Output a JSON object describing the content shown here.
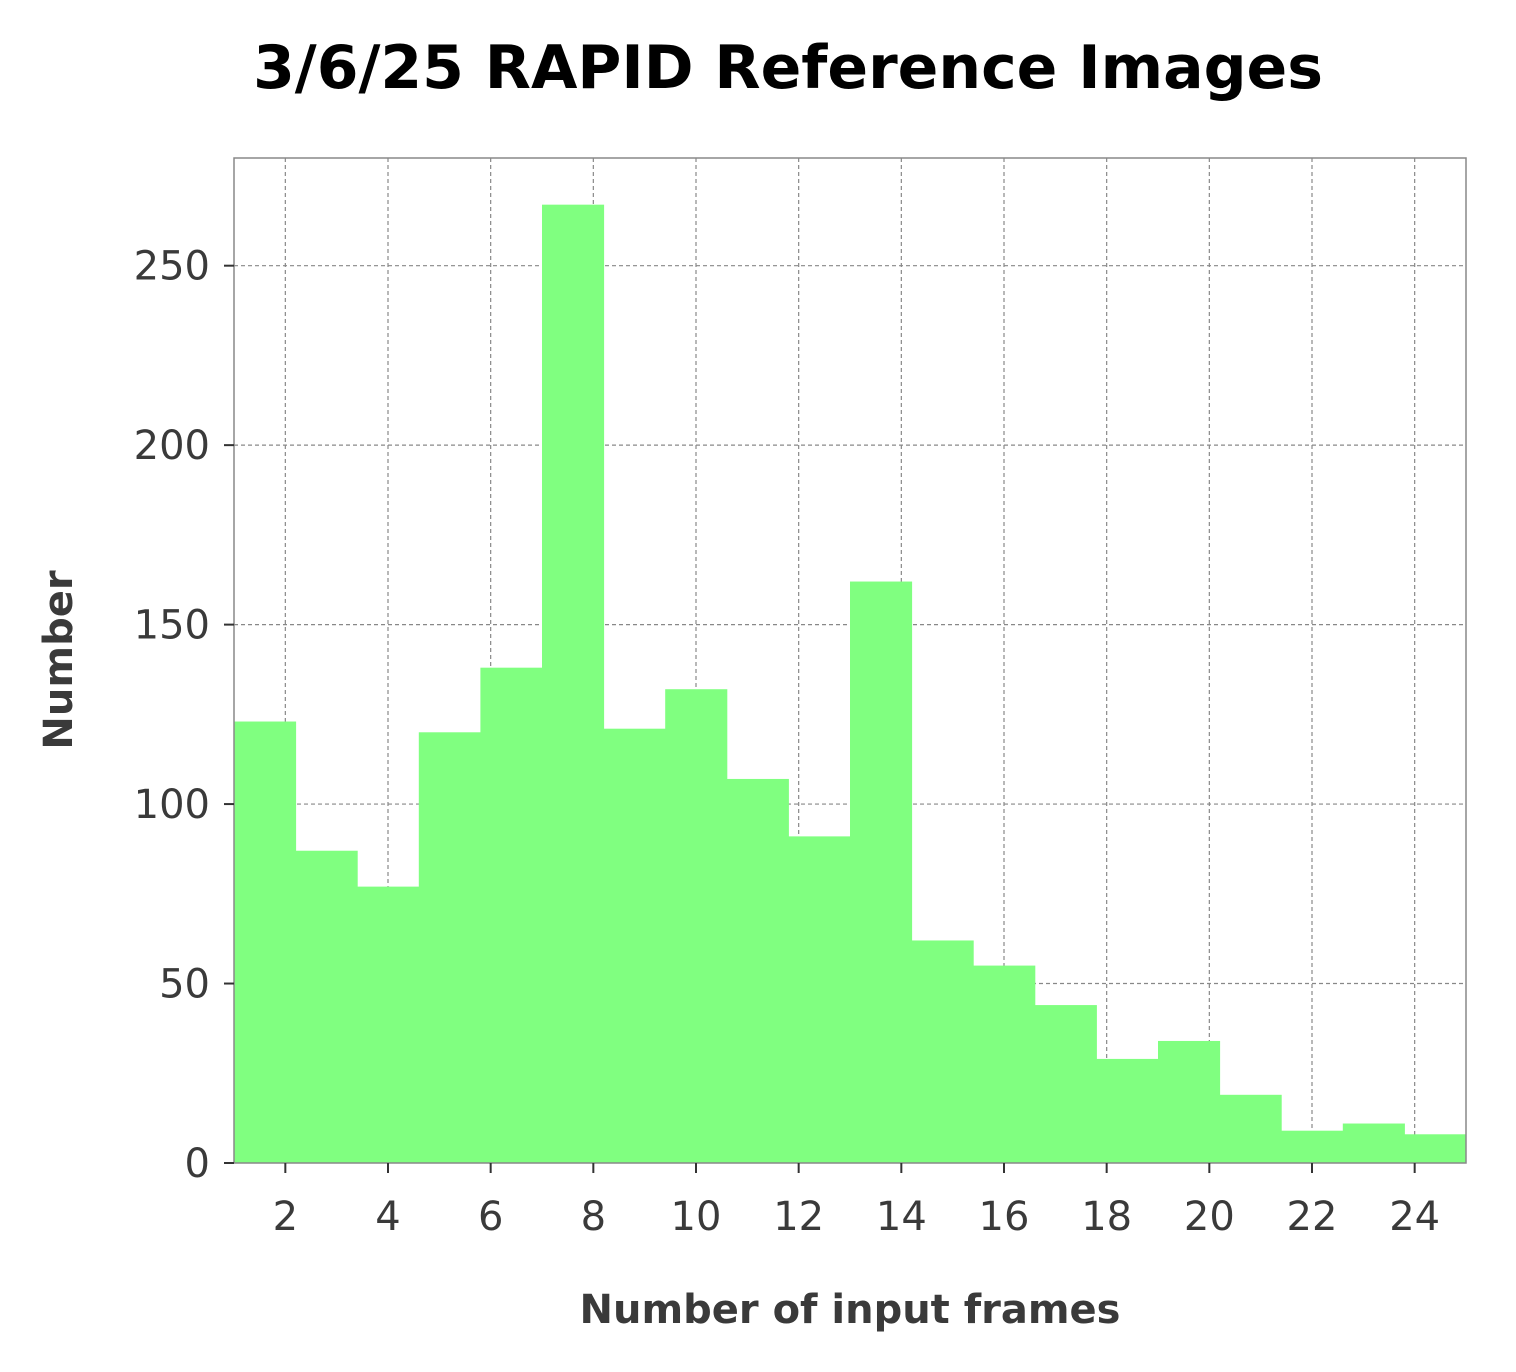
{
  "chart_data": {
    "type": "bar",
    "title": "3/6/25 RAPID Reference Images",
    "xlabel": "Number of input frames",
    "ylabel": "Number",
    "xlim": [
      1,
      25
    ],
    "ylim": [
      0,
      280
    ],
    "xticks": [
      2,
      4,
      6,
      8,
      10,
      12,
      14,
      16,
      18,
      20,
      22,
      24
    ],
    "yticks": [
      0,
      50,
      100,
      150,
      200,
      250
    ],
    "grid": true,
    "bar_color": "#80ff80",
    "bins": [
      {
        "x0": 1.0,
        "x1": 2.2,
        "value": 123
      },
      {
        "x0": 2.2,
        "x1": 3.4,
        "value": 87
      },
      {
        "x0": 3.4,
        "x1": 4.6,
        "value": 77
      },
      {
        "x0": 4.6,
        "x1": 5.8,
        "value": 120
      },
      {
        "x0": 5.8,
        "x1": 7.0,
        "value": 138
      },
      {
        "x0": 7.0,
        "x1": 8.2,
        "value": 267
      },
      {
        "x0": 8.2,
        "x1": 9.4,
        "value": 121
      },
      {
        "x0": 9.4,
        "x1": 10.6,
        "value": 132
      },
      {
        "x0": 10.6,
        "x1": 11.8,
        "value": 107
      },
      {
        "x0": 11.8,
        "x1": 13.0,
        "value": 91
      },
      {
        "x0": 13.0,
        "x1": 14.2,
        "value": 162
      },
      {
        "x0": 14.2,
        "x1": 15.4,
        "value": 62
      },
      {
        "x0": 15.4,
        "x1": 16.6,
        "value": 55
      },
      {
        "x0": 16.6,
        "x1": 17.8,
        "value": 44
      },
      {
        "x0": 17.8,
        "x1": 19.0,
        "value": 29
      },
      {
        "x0": 19.0,
        "x1": 20.2,
        "value": 34
      },
      {
        "x0": 20.2,
        "x1": 21.4,
        "value": 19
      },
      {
        "x0": 21.4,
        "x1": 22.6,
        "value": 9
      },
      {
        "x0": 22.6,
        "x1": 23.8,
        "value": 11
      },
      {
        "x0": 23.8,
        "x1": 25.0,
        "value": 8
      }
    ]
  }
}
